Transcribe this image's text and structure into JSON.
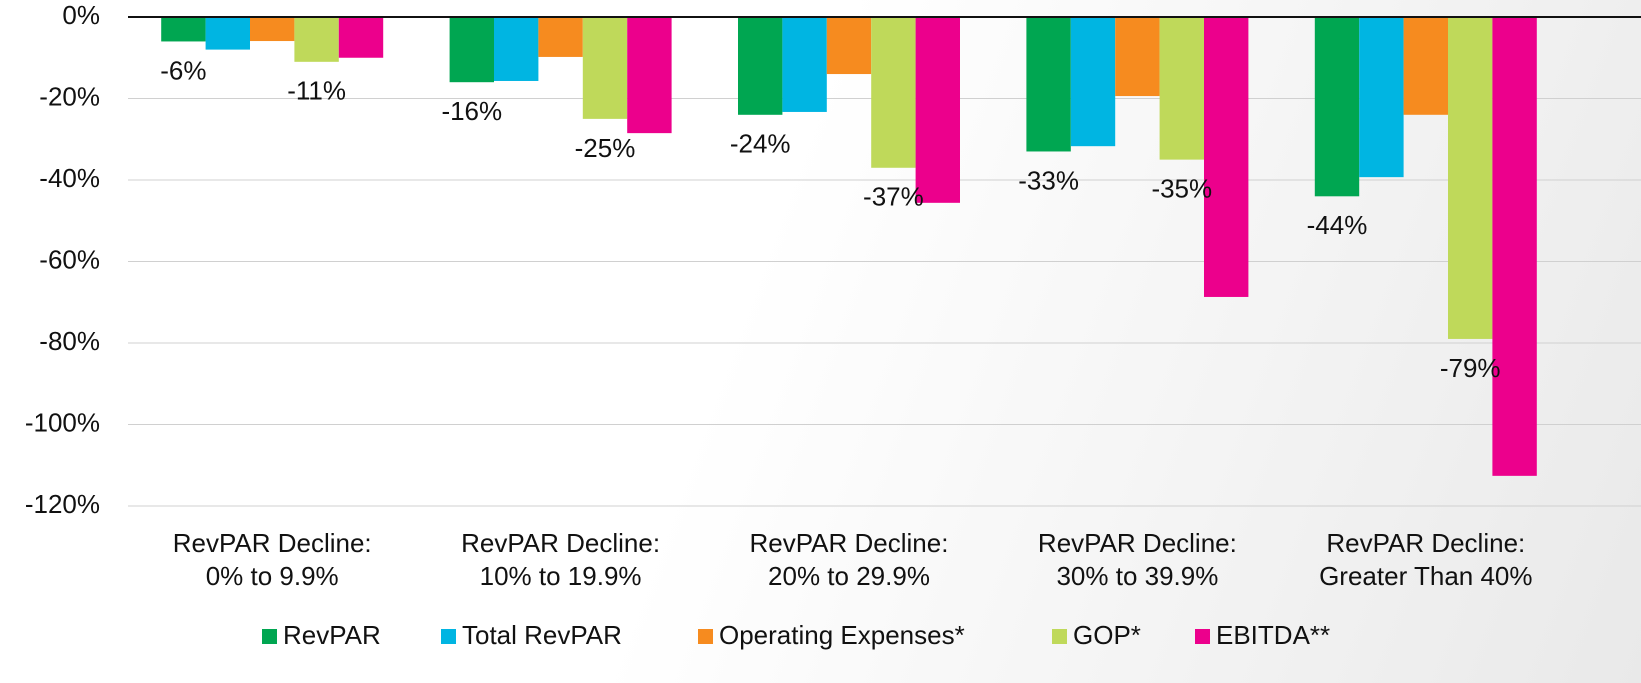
{
  "chart_data": {
    "type": "bar",
    "categories": [
      [
        "RevPAR Decline:",
        "0% to 9.9%"
      ],
      [
        "RevPAR Decline:",
        "10% to 19.9%"
      ],
      [
        "RevPAR Decline:",
        "20% to 29.9%"
      ],
      [
        "RevPAR Decline:",
        "30% to 39.9%"
      ],
      [
        "RevPAR Decline:",
        "Greater Than 40%"
      ]
    ],
    "series": [
      {
        "name": "RevPAR",
        "color": "#00a651",
        "values": [
          -6,
          -16,
          -24,
          -33,
          -44
        ],
        "value_labels": [
          "-6%",
          "-16%",
          "-24%",
          "-33%",
          "-44%"
        ]
      },
      {
        "name": "Total RevPAR",
        "color": "#00b5e2",
        "values": [
          -8,
          -15.7,
          -23.3,
          -31.7,
          -39.3
        ]
      },
      {
        "name": "Operating Expenses*",
        "color": "#f68b1f",
        "values": [
          -5.9,
          -9.8,
          -14,
          -19.4,
          -24
        ]
      },
      {
        "name": "GOP*",
        "color": "#bfd95a",
        "values": [
          -11,
          -25,
          -37,
          -35,
          -79
        ],
        "value_labels": [
          "-11%",
          "-25%",
          "-37%",
          "-35%",
          "-79%"
        ]
      },
      {
        "name": "EBITDA**",
        "color": "#ec008c",
        "values": [
          -10,
          -28.5,
          -45.6,
          -68.7,
          -112.6
        ]
      }
    ],
    "ylim": [
      -120,
      0
    ],
    "yticks": [
      {
        "value": 0,
        "label": "0%"
      },
      {
        "value": -20,
        "label": "-20%"
      },
      {
        "value": -40,
        "label": "-40%"
      },
      {
        "value": -60,
        "label": "-60%"
      },
      {
        "value": -80,
        "label": "-80%"
      },
      {
        "value": -100,
        "label": "-100%"
      },
      {
        "value": -120,
        "label": "-120%"
      }
    ],
    "grid": true,
    "legend": "bottom"
  }
}
